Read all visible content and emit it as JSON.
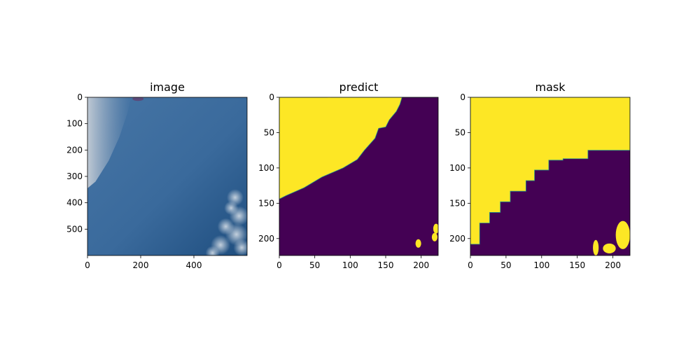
{
  "figure": {
    "background": "#ffffff"
  },
  "chart_data": [
    {
      "type": "image",
      "title": "image",
      "xlim": [
        0,
        600
      ],
      "ylim": [
        600,
        0
      ],
      "xticks": [
        0,
        200,
        400
      ],
      "yticks": [
        0,
        100,
        200,
        300,
        400,
        500
      ],
      "colors": {
        "ocean_light": "#3f6fa0",
        "ocean_dark": "#1f4f80",
        "cloud": "#b9c4cf"
      }
    },
    {
      "type": "heatmap",
      "title": "predict",
      "xlim": [
        0,
        224
      ],
      "ylim": [
        224,
        0
      ],
      "xticks": [
        0,
        50,
        100,
        150,
        200
      ],
      "yticks": [
        0,
        50,
        100,
        150,
        200
      ],
      "colormap": {
        "low": "#440154",
        "high": "#fde725",
        "edge": "#21918c"
      },
      "boundary": [
        [
          0,
          144
        ],
        [
          10,
          139
        ],
        [
          35,
          128
        ],
        [
          60,
          113
        ],
        [
          90,
          100
        ],
        [
          110,
          88
        ],
        [
          120,
          75
        ],
        [
          135,
          58
        ],
        [
          140,
          44
        ],
        [
          150,
          42
        ],
        [
          155,
          32
        ],
        [
          165,
          20
        ],
        [
          170,
          10
        ],
        [
          173,
          0
        ]
      ],
      "blobs": [
        [
          196,
          207,
          4,
          6
        ],
        [
          221,
          186,
          4,
          7
        ],
        [
          219,
          198,
          4,
          6
        ],
        [
          70,
          1,
          3,
          1
        ]
      ]
    },
    {
      "type": "heatmap",
      "title": "mask",
      "xlim": [
        0,
        224
      ],
      "ylim": [
        224,
        0
      ],
      "xticks": [
        0,
        50,
        100,
        150,
        200
      ],
      "yticks": [
        0,
        50,
        100,
        150,
        200
      ],
      "colormap": {
        "low": "#440154",
        "high": "#fde725",
        "edge": "#21918c"
      },
      "boundary": [
        [
          0,
          208
        ],
        [
          13,
          208
        ],
        [
          13,
          178
        ],
        [
          27,
          178
        ],
        [
          27,
          163
        ],
        [
          42,
          163
        ],
        [
          42,
          148
        ],
        [
          56,
          148
        ],
        [
          56,
          133
        ],
        [
          78,
          133
        ],
        [
          78,
          118
        ],
        [
          90,
          118
        ],
        [
          90,
          103
        ],
        [
          110,
          103
        ],
        [
          110,
          89
        ],
        [
          130,
          89
        ],
        [
          130,
          87
        ],
        [
          165,
          87
        ],
        [
          165,
          75
        ],
        [
          224,
          75
        ]
      ],
      "blobs": [
        [
          176,
          213,
          4,
          11
        ],
        [
          195,
          214,
          9,
          7
        ],
        [
          214,
          195,
          10,
          20
        ]
      ]
    }
  ]
}
